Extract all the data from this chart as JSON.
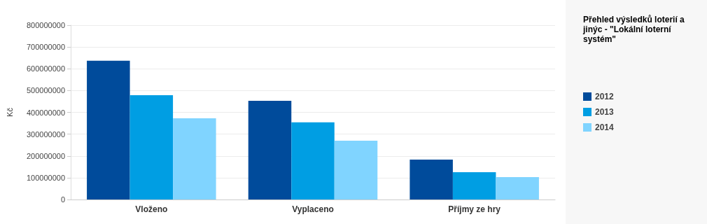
{
  "chart_data": {
    "type": "bar",
    "title": "Přehled výsledků loterií a jinýc - \"Lokální loterní systém\"",
    "ylabel": "Kč",
    "categories": [
      "Vloženo",
      "Vyplaceno",
      "Příjmy ze hry"
    ],
    "series": [
      {
        "name": "2012",
        "color": "#004b9b",
        "values": [
          637000000,
          453000000,
          183000000
        ]
      },
      {
        "name": "2013",
        "color": "#009ee3",
        "values": [
          479000000,
          354000000,
          125000000
        ]
      },
      {
        "name": "2014",
        "color": "#80d4ff",
        "values": [
          373000000,
          270000000,
          103000000
        ]
      }
    ],
    "ylim": [
      0,
      800000000
    ],
    "yticks": [
      0,
      100000000,
      200000000,
      300000000,
      400000000,
      500000000,
      600000000,
      700000000,
      800000000
    ],
    "grid": "y",
    "legend": "right"
  }
}
